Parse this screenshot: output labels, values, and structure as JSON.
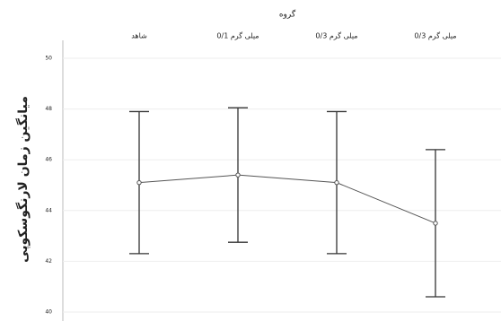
{
  "chart_data": {
    "type": "errorbar-line",
    "title": "گروه",
    "y_label": "میانگین زمان لارنگوسکوپی",
    "categories": [
      "شاهد",
      "0/1 میلی گرم",
      "0/3 میلی گرم",
      "0/3 میلی گرم"
    ],
    "values": [
      45.1,
      45.4,
      45.1,
      43.5
    ],
    "errors": [
      2.8,
      2.65,
      2.8,
      2.9
    ],
    "color": "#555555",
    "ylim": [
      40,
      50
    ],
    "yticks": [
      40,
      42,
      44,
      46,
      48,
      50
    ],
    "grid": true
  }
}
